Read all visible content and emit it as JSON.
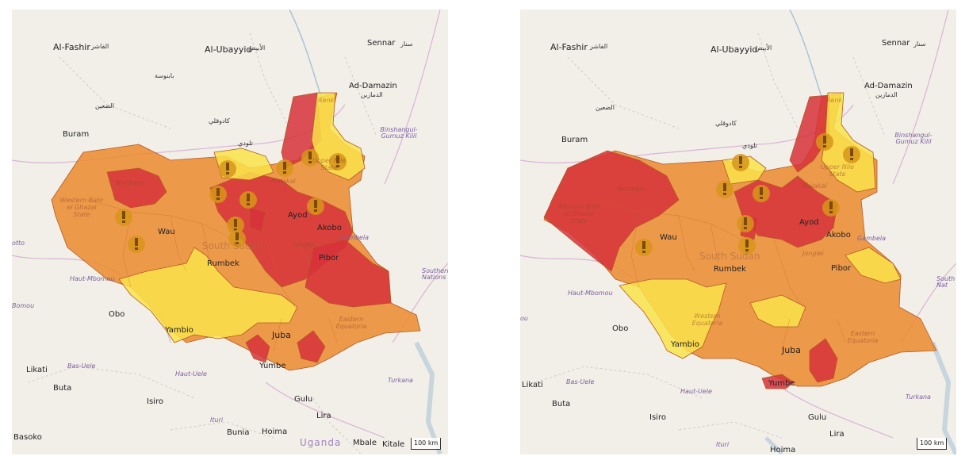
{
  "colors": {
    "background": "#f2efe9",
    "phase_red": "#d7313a",
    "phase_orange": "#ec8a2e",
    "phase_yellow": "#f9e34a",
    "warning_icon": "#d6951a",
    "border": "#b35a24"
  },
  "icons": {
    "alert": "exclamation-circle-icon"
  },
  "maps": [
    {
      "labels": {
        "al_fashir": "Al-Fashir",
        "al_fashir_ar": "الفاشر",
        "al_ubayyid": "Al-Ubayyid",
        "al_ubayyid_ar": "الأبيض",
        "sennar": "Sennar",
        "sennar_ar": "سنار",
        "ad_damazin": "Ad-Damazin",
        "ad_damazin_ar": "الدمازين",
        "buram": "Buram",
        "wau": "Wau",
        "rumbek": "Rumbek",
        "ayod": "Ayod",
        "akobo": "Akobo",
        "pibor": "Pibor",
        "juba": "Juba",
        "yambio": "Yambio",
        "yumbe": "Yumbe",
        "obo": "Obo",
        "likati": "Likati",
        "buta": "Buta",
        "isiro": "Isiro",
        "gulu": "Gulu",
        "lira": "Lira",
        "bunia": "Bunia",
        "hoima": "Hoima",
        "basoko": "Basoko",
        "mbale": "Mbale",
        "kitale": "Kitale",
        "uganda": "Uganda",
        "haut_mbomou": "Haut-Mbomou",
        "bas_uele": "Bas-Uele",
        "haut_uele": "Haut-Uele",
        "ituri": "Ituri",
        "turkana": "Turkana",
        "gambela": "Gambela",
        "binshangul": "Binshangul-Gumuz Kilil",
        "south_sudan": "South Sudan",
        "western_bahr": "Western Bahr el Ghazal State",
        "northern": "Northern",
        "jonglei": "Jonglei",
        "eastern_equatoria": "Eastern Equatoria",
        "upper_nile": "Upper Nile State",
        "malakal": "Malakal",
        "renk": "Renk",
        "el_daein_ar": "الضعين",
        "tullus_ar": "تلودي",
        "kadugli_ar": "كادوقلي",
        "babanusa_ar": "بابنوسة",
        "edge_right": "Southern Nations",
        "edge_bomu": "Bomou",
        "edge_otto": "otto"
      },
      "scale_label": "100 km"
    },
    {
      "labels": {
        "al_fashir": "Al-Fashir",
        "al_fashir_ar": "الفاشر",
        "al_ubayyid": "Al-Ubayyid",
        "al_ubayyid_ar": "الأبيض",
        "sennar": "Sennar",
        "sennar_ar": "سنار",
        "ad_damazin": "Ad-Damazin",
        "ad_damazin_ar": "الدمازين",
        "buram": "Buram",
        "wau": "Wau",
        "rumbek": "Rumbek",
        "ayod": "Ayod",
        "akobo": "Akobo",
        "pibor": "Pibor",
        "juba": "Juba",
        "yambio": "Yambio",
        "yumbe": "Yumbe",
        "obo": "Obo",
        "likati": "Likati",
        "buta": "Buta",
        "isiro": "Isiro",
        "gulu": "Gulu",
        "lira": "Lira",
        "hoima": "Hoima",
        "ituri": "Ituri",
        "haut_mbomou": "Haut-Mbomou",
        "bas_uele": "Bas-Uele",
        "haut_uele": "Haut-Uele",
        "turkana": "Turkana",
        "gambela": "Gambela",
        "binshangul": "Binshangul-Gumuz Kilil",
        "south_sudan": "South Sudan",
        "western_bahr": "Western Bahr el Ghazal State",
        "northern": "Northern",
        "jonglei": "Jonglei",
        "eastern_equatoria": "Eastern Equatoria",
        "western_equatoria": "Western Equatoria",
        "upper_nile": "Upper Nile State",
        "malakal": "Malakal",
        "renk": "Renk",
        "el_daein_ar": "الضعين",
        "tullus_ar": "تلودي",
        "kadugli_ar": "كادوقلي",
        "edge_right": "South Nat",
        "edge_ou": "ou"
      },
      "scale_label": "100 km"
    }
  ]
}
